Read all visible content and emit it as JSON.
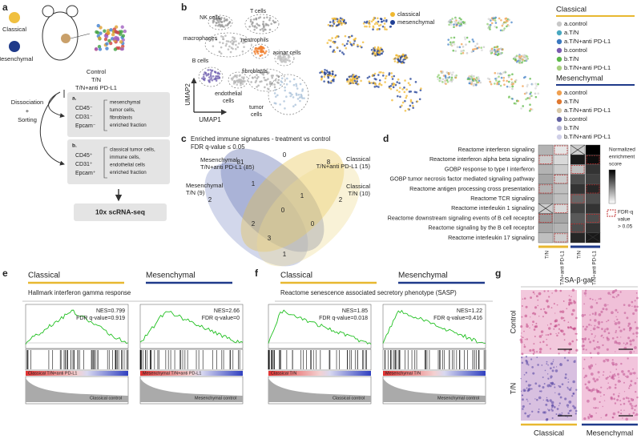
{
  "a": {
    "label": "a",
    "groups": [
      "Classical",
      "Mesenchymal"
    ],
    "conditions": [
      "Control",
      "T/N",
      "T/N+anti PD-L1"
    ],
    "steps": [
      "Dissociation",
      "+",
      "Sorting"
    ],
    "fractions": [
      {
        "tag": "a.",
        "markers": [
          "CD45⁻",
          "CD31⁻",
          "Epcam⁻"
        ],
        "description": [
          "mesenchymal",
          "tumor cells,",
          "fibroblasts",
          "enriched fraction"
        ]
      },
      {
        "tag": "b.",
        "markers": [
          "CD45⁺",
          "CD31⁺",
          "Epcam⁺"
        ],
        "description": [
          "classical tumor cells,",
          "immune cells,",
          "endothelial cells",
          "enriched fraction"
        ]
      }
    ],
    "output": "10x scRNA-seq"
  },
  "b": {
    "label": "b",
    "cell_types": [
      [
        "NK cells"
      ],
      [
        "T cells"
      ],
      [
        "macrophages"
      ],
      [
        "neutrophils"
      ],
      [
        "acinar cells"
      ],
      [
        "B cells"
      ],
      [
        "fibroblasts"
      ],
      [
        "endothelial",
        "cells"
      ],
      [
        "tumor",
        "cells"
      ]
    ],
    "axes": [
      "UMAP2",
      "UMAP1"
    ],
    "overlay_legend": [
      "classical",
      "mesenchymal"
    ],
    "legend": [
      {
        "title": "Classical",
        "items": [
          "a.control",
          "a.T/N",
          "a.T/N+anti PD-L1",
          "b.control",
          "b.T/N",
          "b.T/N+anti PD-L1"
        ]
      },
      {
        "title": "Mesenchymal",
        "items": [
          "a.control",
          "a.T/N",
          "a.T/N+anti PD-L1",
          "b.control",
          "b.T/N",
          "b.T/N+anti PD-L1"
        ]
      }
    ]
  },
  "c": {
    "label": "c",
    "title": [
      "Enriched immune signatures - treatment vs control",
      "FDR q-value ≤ 0.05"
    ],
    "sets": [
      [
        "Mesenchymal",
        "T/N+anti PD-L1 (85)"
      ],
      [
        "Mesenchymal",
        "T/N (9)"
      ],
      [
        "Classical",
        "T/N+anti PD-L1 (15)"
      ],
      [
        "Classical",
        "T/N (10)"
      ]
    ],
    "counts": [
      81,
      0,
      8,
      2,
      1,
      1,
      2,
      0,
      2,
      0,
      3,
      1
    ]
  },
  "d": {
    "label": "d",
    "pathways": [
      "Reactome interferon signaling",
      "Reactome interferon alpha beta signaling",
      "GOBP response to type I interferon",
      "GOBP tumor necrosis factor mediated signaling pathway",
      "Reactome antigen processing cross presentation",
      "Reactome TCR signaling",
      "Reactome interleukin 1 signaling",
      "Reactome downstream signaling events of B cell receptor",
      "Reactome signaling by the B cell receptor",
      "Reactome interleukin 17 signaling"
    ],
    "colorbar_title": [
      "Normalized",
      "enrichment",
      "score"
    ],
    "fdr_note": [
      "FDR-q",
      "value",
      "> 0.05"
    ],
    "columns": [
      "T/N",
      "T/N+anti PD-L1",
      "T/N",
      "T/N+anti PD-L1"
    ]
  },
  "e": {
    "label": "e",
    "groups": [
      "Classical",
      "Mesenchymal"
    ],
    "title": "Hallmark interferon gamma response",
    "plots": [
      {
        "nes": "NES=0.799",
        "fdr": "FDR q-value=0.919",
        "positive": "Classical T/N+anti PD-L1",
        "negative": "Classical control"
      },
      {
        "nes": "NES=2.66",
        "fdr": "FDR q-value=0",
        "positive": "Mesenchymal T/N+anti PD-L1",
        "negative": "Mesenchymal control"
      }
    ]
  },
  "f": {
    "label": "f",
    "groups": [
      "Classical",
      "Mesenchymal"
    ],
    "title": "Reactome senescence associated secretory phenotype (SASP)",
    "plots": [
      {
        "nes": "NES=1.85",
        "fdr": "FDR q-value=0.018",
        "positive": "Classical T/N",
        "negative": "Classical control"
      },
      {
        "nes": "NES=1.22",
        "fdr": "FDR q-value=0.416",
        "positive": "Mesenchymal T/N",
        "negative": "Mesenchymal control"
      }
    ]
  },
  "g": {
    "label": "g",
    "title": "SA-β-gal",
    "rows": [
      "Control",
      "T/N"
    ],
    "columns": [
      "Classical",
      "Mesenchymal"
    ]
  }
}
